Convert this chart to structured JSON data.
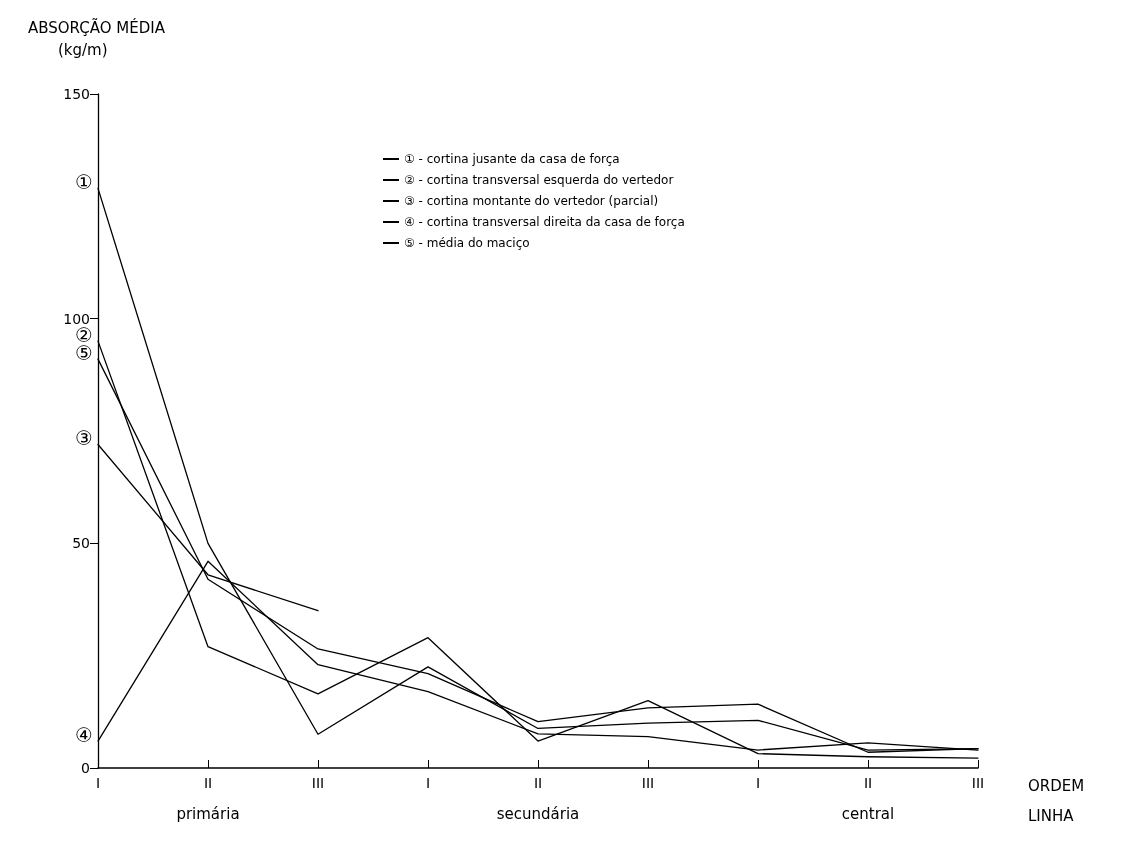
{
  "chart_data": {
    "type": "line",
    "xlabel": "ORDEM\nLINHA",
    "ylabel": "ABSORÇÃO MÉDIA\n(kg/m)",
    "categories": [
      "I",
      "II",
      "III",
      "I",
      "II",
      "III",
      "I",
      "II",
      "III"
    ],
    "series": [
      {
        "name": "① - cortina jusante da casa de força",
        "color": "#000000",
        "values": [
          129,
          50,
          7.5,
          22.5,
          8.8,
          10,
          10.6,
          4,
          4.3
        ]
      },
      {
        "name": "② - cortina transversal esquerda do vertedor",
        "color": "#000000",
        "values": [
          95,
          27,
          16.5,
          29,
          6,
          15,
          3.2,
          2.5,
          2.2
        ]
      },
      {
        "name": "③ - cortina montante do vertedor (parcial)",
        "color": "#000000",
        "values": [
          72,
          43,
          35,
          null,
          null,
          null,
          null,
          null,
          null
        ]
      },
      {
        "name": "④ - cortina transversal direita da casa de força",
        "color": "#000000",
        "values": [
          6,
          46,
          23,
          17,
          7.6,
          7,
          4,
          5.6,
          4
        ]
      },
      {
        "name": "⑤ - média do maciço",
        "color": "#000000",
        "values": [
          91,
          42,
          26.5,
          21,
          10.3,
          13.4,
          14.2,
          3.5,
          4.3
        ]
      }
    ],
    "annotations": [
      {
        "text": "①",
        "x": "I",
        "y": 129
      },
      {
        "text": "②",
        "x": "I",
        "y": 95
      },
      {
        "text": "③",
        "x": "I",
        "y": 72
      },
      {
        "text": "④",
        "x": "I",
        "y": 6
      },
      {
        "text": "⑤",
        "x": "I",
        "y": 91
      },
      "primária",
      "secundária",
      "central"
    ],
    "ylim": [
      0,
      150
    ],
    "yticks": [
      0,
      50,
      100,
      150
    ],
    "grid": false,
    "legend": "top",
    "marker": "none",
    "line_style": "solid"
  }
}
